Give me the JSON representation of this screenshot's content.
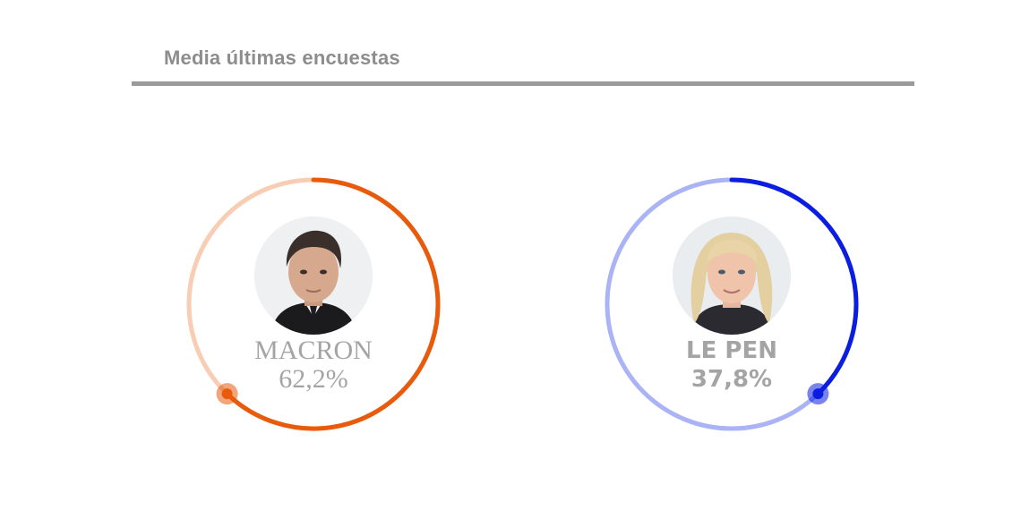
{
  "header": {
    "title": "Media últimas encuestas"
  },
  "chart_data": {
    "type": "gauge",
    "series": [
      {
        "name": "MACRON",
        "value": 62.2,
        "value_label": "62,2%",
        "color": "#e85a0c",
        "track_color": "#f8cdb3",
        "photo_icon": "macron-portrait"
      },
      {
        "name": "LE PEN",
        "value": 37.8,
        "value_label": "37,8%",
        "color": "#0b1de0",
        "track_color": "#aab3f6",
        "photo_icon": "le-pen-portrait"
      }
    ]
  }
}
